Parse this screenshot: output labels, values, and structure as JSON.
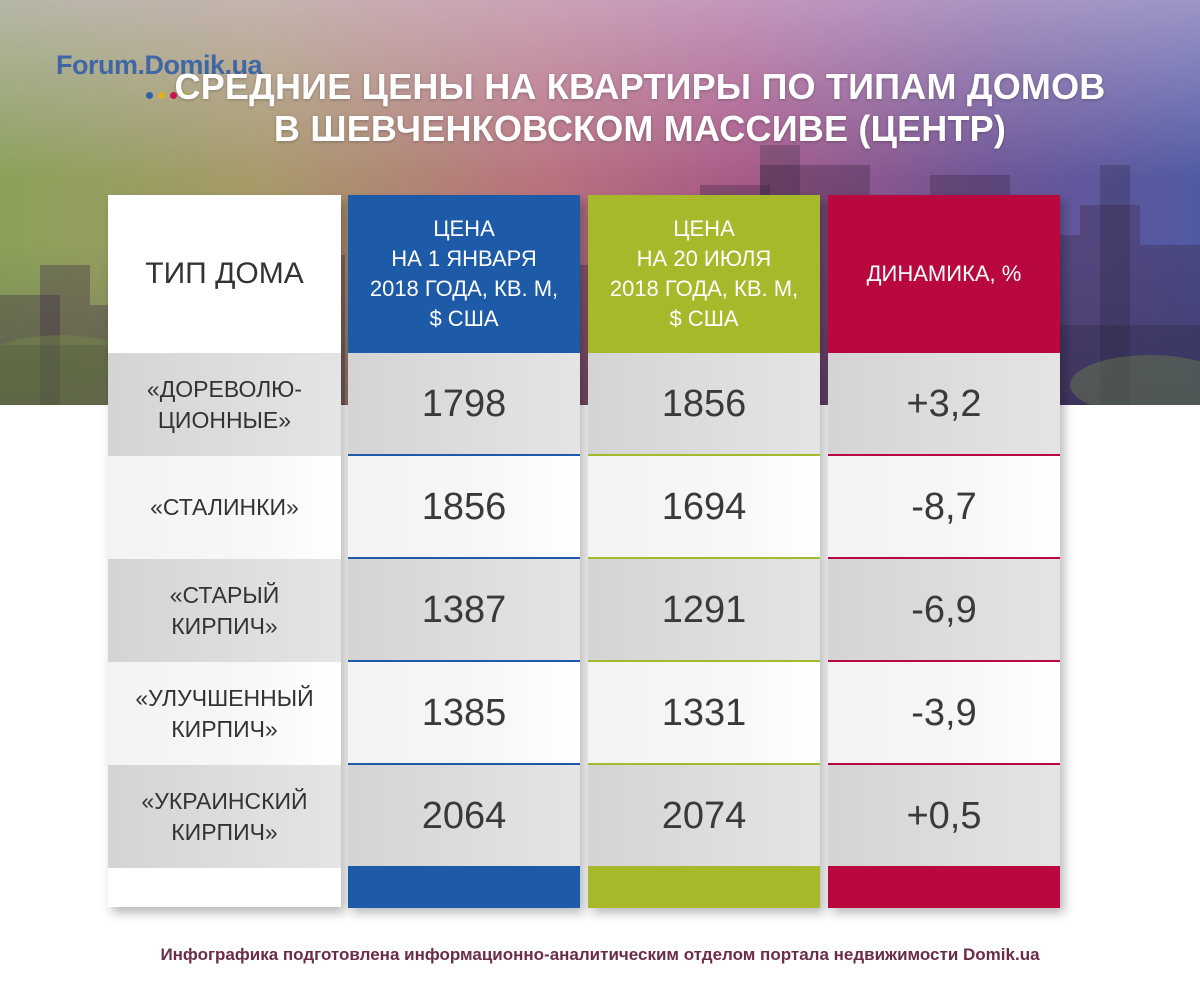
{
  "logo": {
    "text": "Forum.Domik.ua"
  },
  "title_line1": "Средние цены на квартиры по типам домов",
  "title_line2": "в Шевченковском массиве (центр)",
  "colors": {
    "blue": "#1d5aa8",
    "green": "#a7b92b",
    "red": "#b9083e"
  },
  "headers": [
    "Тип дома",
    "Цена\nна 1 января\n2018 года, кв. м,\n$ США",
    "Цена\nна 20 июля\n2018 года, кв. м,\n$ США",
    "Динамика, %"
  ],
  "chart_data": {
    "type": "table",
    "title": "Средние цены на квартиры по типам домов в Шевченковском массиве (центр)",
    "columns": [
      "Тип дома",
      "Цена на 1 января 2018 года, кв. м, $ США",
      "Цена на 20 июля 2018 года, кв. м, $ США",
      "Динамика, %"
    ],
    "rows": [
      {
        "type": "«Дореволю-\nционные»",
        "price_jan": "1798",
        "price_jul": "1856",
        "change": "+3,2"
      },
      {
        "type": "«Сталинки»",
        "price_jan": "1856",
        "price_jul": "1694",
        "change": "-8,7"
      },
      {
        "type": "«Старый\nкирпич»",
        "price_jan": "1387",
        "price_jul": "1291",
        "change": "-6,9"
      },
      {
        "type": "«Улучшенный\nкирпич»",
        "price_jan": "1385",
        "price_jul": "1331",
        "change": "-3,9"
      },
      {
        "type": "«Украинский\nкирпич»",
        "price_jan": "2064",
        "price_jul": "2074",
        "change": "+0,5"
      }
    ]
  },
  "caption": "Инфографика подготовлена информационно-аналитическим отделом портала недвижимости Domik.ua"
}
